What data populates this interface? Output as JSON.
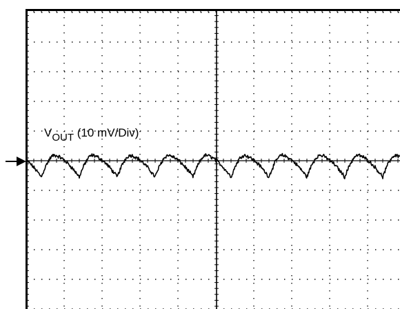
{
  "chart_data": {
    "type": "line",
    "grid": true,
    "x_divisions": 10,
    "y_divisions": 10,
    "label": {
      "v": "V",
      "sub": "OUT",
      "rest": " (10 mV/Div)"
    },
    "colors": {
      "trace": "#000000",
      "grid": "#000000",
      "background": "#ffffff"
    },
    "series": [
      {
        "period_div": 1.0,
        "baseline_div": 0.0,
        "peak_div": 0.18,
        "trough_div": -0.55,
        "noise_div": 0.05
      }
    ]
  }
}
